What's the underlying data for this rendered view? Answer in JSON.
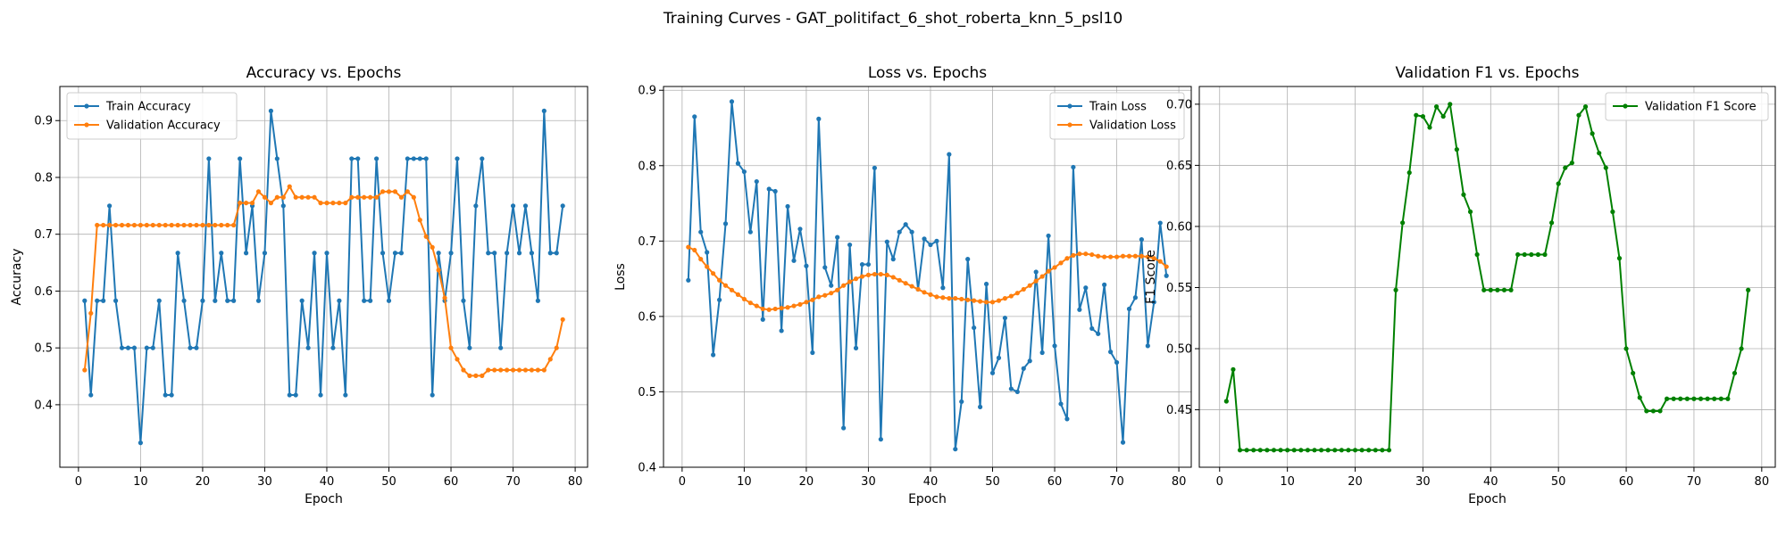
{
  "figure": {
    "suptitle": "Training Curves - GAT_politifact_6_shot_roberta_knn_5_psl10"
  },
  "colors": {
    "train": "#1f77b4",
    "validation": "#ff7f0e",
    "f1": "#008000",
    "grid": "#b0b0b0"
  },
  "chart_data": [
    {
      "type": "line",
      "title": "Accuracy vs. Epochs",
      "xlabel": "Epoch",
      "ylabel": "Accuracy",
      "xlim": [
        -3,
        82
      ],
      "ylim": [
        0.29,
        0.96
      ],
      "xticks": [
        0,
        10,
        20,
        30,
        40,
        50,
        60,
        70,
        80
      ],
      "yticks": [
        0.4,
        0.5,
        0.6,
        0.7,
        0.8,
        0.9
      ],
      "grid": true,
      "legend_position": "upper-left",
      "x": [
        1,
        2,
        3,
        4,
        5,
        6,
        7,
        8,
        9,
        10,
        11,
        12,
        13,
        14,
        15,
        16,
        17,
        18,
        19,
        20,
        21,
        22,
        23,
        24,
        25,
        26,
        27,
        28,
        29,
        30,
        31,
        32,
        33,
        34,
        35,
        36,
        37,
        38,
        39,
        40,
        41,
        42,
        43,
        44,
        45,
        46,
        47,
        48,
        49,
        50,
        51,
        52,
        53,
        54,
        55,
        56,
        57,
        58,
        59,
        60,
        61,
        62,
        63,
        64,
        65,
        66,
        67,
        68,
        69,
        70,
        71,
        72,
        73,
        74,
        75,
        76,
        77,
        78
      ],
      "series": [
        {
          "name": "Train Accuracy",
          "color": "#1f77b4",
          "values": [
            0.583,
            0.417,
            0.583,
            0.583,
            0.75,
            0.583,
            0.5,
            0.5,
            0.5,
            0.333,
            0.5,
            0.5,
            0.583,
            0.417,
            0.417,
            0.667,
            0.583,
            0.5,
            0.5,
            0.583,
            0.833,
            0.583,
            0.667,
            0.583,
            0.583,
            0.833,
            0.667,
            0.75,
            0.583,
            0.667,
            0.917,
            0.833,
            0.75,
            0.417,
            0.417,
            0.583,
            0.5,
            0.667,
            0.417,
            0.667,
            0.5,
            0.583,
            0.417,
            0.833,
            0.833,
            0.583,
            0.583,
            0.833,
            0.667,
            0.583,
            0.667,
            0.667,
            0.833,
            0.833,
            0.833,
            0.833,
            0.417,
            0.667,
            0.583,
            0.667,
            0.833,
            0.583,
            0.5,
            0.75,
            0.833,
            0.667,
            0.667,
            0.5,
            0.667,
            0.75,
            0.667,
            0.75,
            0.667,
            0.583,
            0.917,
            0.667,
            0.667,
            0.75
          ]
        },
        {
          "name": "Validation Accuracy",
          "color": "#ff7f0e",
          "values": [
            0.461,
            0.561,
            0.716,
            0.716,
            0.716,
            0.716,
            0.716,
            0.716,
            0.716,
            0.716,
            0.716,
            0.716,
            0.716,
            0.716,
            0.716,
            0.716,
            0.716,
            0.716,
            0.716,
            0.716,
            0.716,
            0.716,
            0.716,
            0.716,
            0.716,
            0.755,
            0.755,
            0.755,
            0.775,
            0.765,
            0.755,
            0.765,
            0.765,
            0.784,
            0.765,
            0.765,
            0.765,
            0.765,
            0.755,
            0.755,
            0.755,
            0.755,
            0.755,
            0.765,
            0.765,
            0.765,
            0.765,
            0.765,
            0.775,
            0.775,
            0.775,
            0.765,
            0.775,
            0.765,
            0.725,
            0.696,
            0.677,
            0.637,
            0.588,
            0.5,
            0.48,
            0.461,
            0.451,
            0.451,
            0.451,
            0.461,
            0.461,
            0.461,
            0.461,
            0.461,
            0.461,
            0.461,
            0.461,
            0.461,
            0.461,
            0.48,
            0.5,
            0.55
          ]
        }
      ]
    },
    {
      "type": "line",
      "title": "Loss vs. Epochs",
      "xlabel": "Epoch",
      "ylabel": "Loss",
      "xlim": [
        -3,
        82
      ],
      "ylim": [
        0.4,
        0.905
      ],
      "xticks": [
        0,
        10,
        20,
        30,
        40,
        50,
        60,
        70,
        80
      ],
      "yticks": [
        0.4,
        0.5,
        0.6,
        0.7,
        0.8,
        0.9
      ],
      "grid": true,
      "legend_position": "upper-right",
      "x": [
        1,
        2,
        3,
        4,
        5,
        6,
        7,
        8,
        9,
        10,
        11,
        12,
        13,
        14,
        15,
        16,
        17,
        18,
        19,
        20,
        21,
        22,
        23,
        24,
        25,
        26,
        27,
        28,
        29,
        30,
        31,
        32,
        33,
        34,
        35,
        36,
        37,
        38,
        39,
        40,
        41,
        42,
        43,
        44,
        45,
        46,
        47,
        48,
        49,
        50,
        51,
        52,
        53,
        54,
        55,
        56,
        57,
        58,
        59,
        60,
        61,
        62,
        63,
        64,
        65,
        66,
        67,
        68,
        69,
        70,
        71,
        72,
        73,
        74,
        75,
        76,
        77,
        78
      ],
      "series": [
        {
          "name": "Train Loss",
          "color": "#1f77b4",
          "values": [
            0.648,
            0.865,
            0.712,
            0.685,
            0.549,
            0.622,
            0.723,
            0.885,
            0.803,
            0.792,
            0.712,
            0.779,
            0.596,
            0.769,
            0.766,
            0.581,
            0.746,
            0.674,
            0.716,
            0.667,
            0.552,
            0.862,
            0.665,
            0.641,
            0.705,
            0.452,
            0.695,
            0.558,
            0.669,
            0.669,
            0.797,
            0.437,
            0.699,
            0.676,
            0.712,
            0.722,
            0.712,
            0.636,
            0.703,
            0.695,
            0.7,
            0.638,
            0.815,
            0.424,
            0.487,
            0.676,
            0.585,
            0.48,
            0.643,
            0.525,
            0.545,
            0.598,
            0.504,
            0.5,
            0.531,
            0.541,
            0.659,
            0.552,
            0.707,
            0.561,
            0.484,
            0.464,
            0.798,
            0.609,
            0.638,
            0.584,
            0.577,
            0.642,
            0.553,
            0.539,
            0.433,
            0.61,
            0.625,
            0.702,
            0.561,
            0.619,
            0.724,
            0.654
          ]
        },
        {
          "name": "Validation Loss",
          "color": "#ff7f0e",
          "values": [
            0.692,
            0.688,
            0.676,
            0.666,
            0.657,
            0.648,
            0.641,
            0.635,
            0.629,
            0.623,
            0.618,
            0.614,
            0.61,
            0.609,
            0.61,
            0.611,
            0.612,
            0.614,
            0.616,
            0.619,
            0.622,
            0.626,
            0.628,
            0.631,
            0.635,
            0.641,
            0.646,
            0.65,
            0.653,
            0.655,
            0.656,
            0.656,
            0.655,
            0.652,
            0.648,
            0.644,
            0.64,
            0.636,
            0.632,
            0.629,
            0.626,
            0.625,
            0.624,
            0.624,
            0.623,
            0.622,
            0.621,
            0.62,
            0.619,
            0.619,
            0.621,
            0.624,
            0.627,
            0.631,
            0.636,
            0.641,
            0.647,
            0.653,
            0.66,
            0.665,
            0.671,
            0.677,
            0.681,
            0.683,
            0.683,
            0.682,
            0.68,
            0.679,
            0.679,
            0.679,
            0.68,
            0.68,
            0.68,
            0.68,
            0.679,
            0.677,
            0.673,
            0.666
          ]
        }
      ]
    },
    {
      "type": "line",
      "title": "Validation F1 vs. Epochs",
      "xlabel": "Epoch",
      "ylabel": "F1 Score",
      "xlim": [
        -3,
        82
      ],
      "ylim": [
        0.403,
        0.7145
      ],
      "xticks": [
        0,
        10,
        20,
        30,
        40,
        50,
        60,
        70,
        80
      ],
      "yticks": [
        0.45,
        0.5,
        0.55,
        0.6,
        0.65,
        0.7
      ],
      "grid": true,
      "legend_position": "upper-right",
      "x": [
        1,
        2,
        3,
        4,
        5,
        6,
        7,
        8,
        9,
        10,
        11,
        12,
        13,
        14,
        15,
        16,
        17,
        18,
        19,
        20,
        21,
        22,
        23,
        24,
        25,
        26,
        27,
        28,
        29,
        30,
        31,
        32,
        33,
        34,
        35,
        36,
        37,
        38,
        39,
        40,
        41,
        42,
        43,
        44,
        45,
        46,
        47,
        48,
        49,
        50,
        51,
        52,
        53,
        54,
        55,
        56,
        57,
        58,
        59,
        60,
        61,
        62,
        63,
        64,
        65,
        66,
        67,
        68,
        69,
        70,
        71,
        72,
        73,
        74,
        75,
        76,
        77,
        78
      ],
      "series": [
        {
          "name": "Validation F1 Score",
          "color": "#008000",
          "values": [
            0.457,
            0.483,
            0.417,
            0.417,
            0.417,
            0.417,
            0.417,
            0.417,
            0.417,
            0.417,
            0.417,
            0.417,
            0.417,
            0.417,
            0.417,
            0.417,
            0.417,
            0.417,
            0.417,
            0.417,
            0.417,
            0.417,
            0.417,
            0.417,
            0.417,
            0.548,
            0.603,
            0.644,
            0.691,
            0.69,
            0.681,
            0.698,
            0.69,
            0.7,
            0.663,
            0.626,
            0.612,
            0.577,
            0.548,
            0.548,
            0.548,
            0.548,
            0.548,
            0.577,
            0.577,
            0.577,
            0.577,
            0.577,
            0.603,
            0.635,
            0.648,
            0.652,
            0.691,
            0.698,
            0.676,
            0.66,
            0.648,
            0.612,
            0.574,
            0.5,
            0.48,
            0.46,
            0.449,
            0.449,
            0.449,
            0.459,
            0.459,
            0.459,
            0.459,
            0.459,
            0.459,
            0.459,
            0.459,
            0.459,
            0.459,
            0.48,
            0.5,
            0.548
          ]
        }
      ]
    }
  ]
}
